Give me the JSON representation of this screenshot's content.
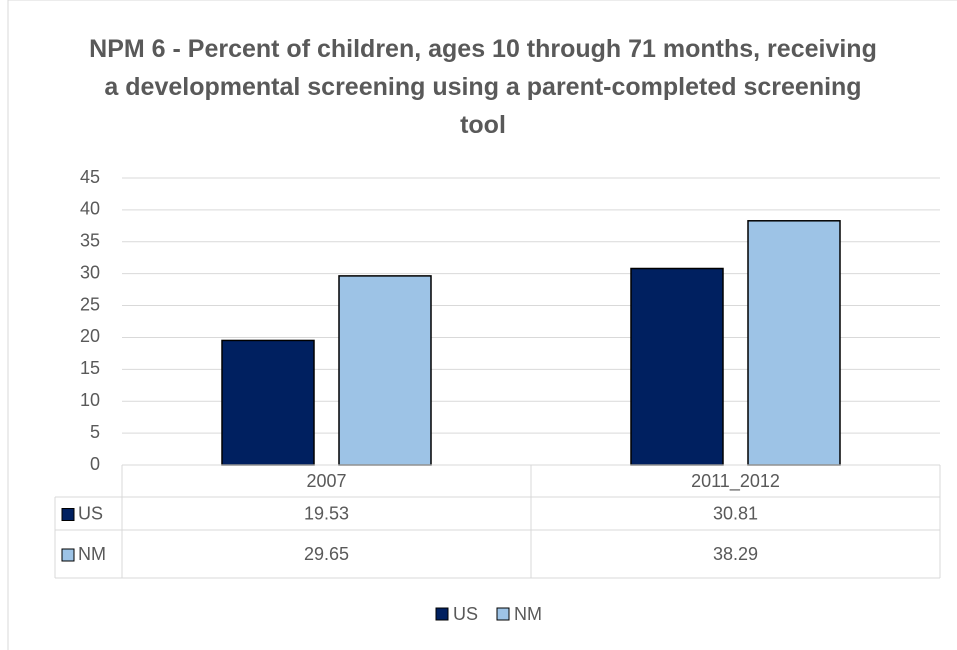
{
  "chart_data": {
    "type": "bar",
    "title": "NPM 6 - Percent of children, ages 10 through 71 months, receiving a developmental screening using a parent-completed screening tool",
    "categories": [
      "2007",
      "2011_2012"
    ],
    "series": [
      {
        "name": "US",
        "color": "#002060",
        "values": [
          19.53,
          30.81
        ]
      },
      {
        "name": "NM",
        "color": "#9dc3e6",
        "values": [
          29.65,
          38.29
        ]
      }
    ],
    "ylim": [
      0,
      45
    ],
    "yticks": [
      0,
      5,
      10,
      15,
      20,
      25,
      30,
      35,
      40,
      45
    ],
    "grid": true,
    "data_table": true,
    "legend": "bottom"
  }
}
